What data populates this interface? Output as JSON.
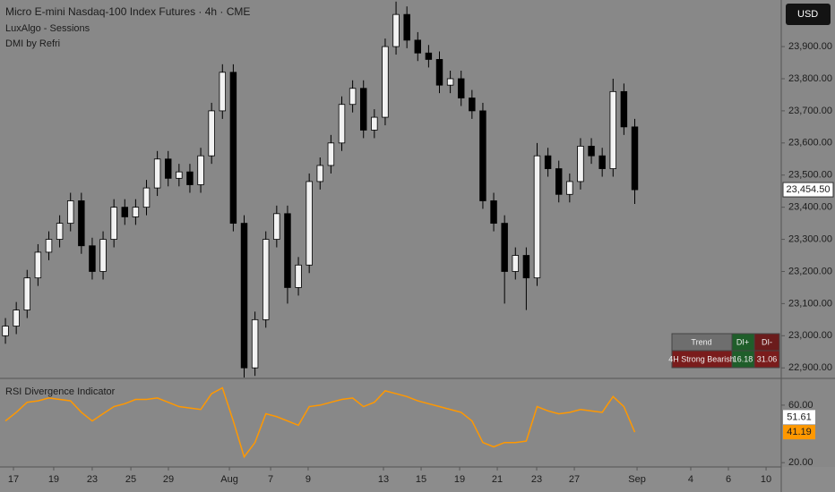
{
  "header": {
    "title": "Micro E-mini Nasdaq-100 Index Futures · 4h · CME",
    "indicators": [
      "LuxAlgo - Sessions",
      "DMI by Refri"
    ],
    "currency": "USD"
  },
  "dmi_table": {
    "header": [
      "Trend",
      "DI+",
      "DI-"
    ],
    "row": [
      "4H Strong Bearish",
      16.18,
      31.06
    ]
  },
  "chart_data": [
    {
      "type": "candlestick",
      "open": [
        23000,
        23030,
        23080,
        23180,
        23260,
        23300,
        23350,
        23420,
        23280,
        23200,
        23300,
        23400,
        23370,
        23400,
        23460,
        23550,
        23490,
        23510,
        23470,
        23560,
        23700,
        23820,
        23350,
        22900,
        23050,
        23300,
        23380,
        23150,
        23220,
        23480,
        23530,
        23600,
        23720,
        23770,
        23640,
        23680,
        23900,
        24000,
        23920,
        23880,
        23860,
        23780,
        23800,
        23740,
        23700,
        23420,
        23350,
        23200,
        23250,
        23180,
        23560,
        23520,
        23440,
        23480,
        23590,
        23560,
        23520,
        23760,
        23650
      ],
      "high": [
        23055,
        23105,
        23205,
        23285,
        23325,
        23375,
        23445,
        23445,
        23305,
        23325,
        23425,
        23425,
        23425,
        23485,
        23575,
        23575,
        23535,
        23535,
        23585,
        23725,
        23845,
        23845,
        23375,
        23075,
        23325,
        23405,
        23405,
        23245,
        23505,
        23555,
        23625,
        23745,
        23795,
        23795,
        23705,
        23925,
        24040,
        24025,
        23945,
        23905,
        23885,
        23825,
        23825,
        23765,
        23725,
        23445,
        23375,
        23275,
        23275,
        23600,
        23585,
        23545,
        23505,
        23615,
        23615,
        23585,
        23800,
        23785,
        23675
      ],
      "low": [
        22975,
        23005,
        23055,
        23155,
        23235,
        23275,
        23325,
        23255,
        23175,
        23175,
        23275,
        23345,
        23345,
        23375,
        23435,
        23465,
        23465,
        23445,
        23445,
        23535,
        23675,
        23325,
        22870,
        22875,
        23025,
        23275,
        23100,
        23125,
        23195,
        23455,
        23505,
        23575,
        23695,
        23615,
        23615,
        23655,
        23875,
        23895,
        23855,
        23835,
        23755,
        23755,
        23715,
        23675,
        23395,
        23325,
        23100,
        23175,
        23080,
        23155,
        23495,
        23415,
        23415,
        23455,
        23535,
        23495,
        23495,
        23625,
        23410
      ],
      "close": [
        23030,
        23080,
        23180,
        23260,
        23300,
        23350,
        23420,
        23280,
        23200,
        23300,
        23400,
        23370,
        23400,
        23460,
        23550,
        23490,
        23510,
        23470,
        23560,
        23700,
        23820,
        23350,
        22900,
        23050,
        23300,
        23380,
        23150,
        23220,
        23480,
        23530,
        23600,
        23720,
        23770,
        23640,
        23680,
        23900,
        24000,
        23920,
        23880,
        23860,
        23780,
        23800,
        23740,
        23700,
        23420,
        23350,
        23200,
        23250,
        23180,
        23560,
        23520,
        23440,
        23480,
        23590,
        23560,
        23520,
        23760,
        23650,
        23454.5
      ],
      "up_color": "#f2f2f2",
      "down_color": "#000000",
      "current_price": {
        "value": 23454.5,
        "label": "23,454.50"
      },
      "ylim": [
        22870,
        24045
      ],
      "yticks": [
        {
          "value": 22900,
          "label": "22,900.00"
        },
        {
          "value": 23000,
          "label": "23,000.00"
        },
        {
          "value": 23100,
          "label": "23,100.00"
        },
        {
          "value": 23200,
          "label": "23,200.00"
        },
        {
          "value": 23300,
          "label": "23,300.00"
        },
        {
          "value": 23400,
          "label": "23,400.00"
        },
        {
          "value": 23500,
          "label": "23,500.00"
        },
        {
          "value": 23600,
          "label": "23,600.00"
        },
        {
          "value": 23700,
          "label": "23,700.00"
        },
        {
          "value": 23800,
          "label": "23,800.00"
        },
        {
          "value": 23900,
          "label": "23,900.00"
        }
      ],
      "xlim": [
        0,
        72
      ],
      "xticks": [
        {
          "value": 1.24,
          "label": "17"
        },
        {
          "value": 4.95,
          "label": "19"
        },
        {
          "value": 8.5,
          "label": "23"
        },
        {
          "value": 12.06,
          "label": "25"
        },
        {
          "value": 15.52,
          "label": "29"
        },
        {
          "value": 21.14,
          "label": "Aug"
        },
        {
          "value": 24.94,
          "label": "7"
        },
        {
          "value": 28.4,
          "label": "9"
        },
        {
          "value": 35.34,
          "label": "13"
        },
        {
          "value": 38.81,
          "label": "15"
        },
        {
          "value": 42.36,
          "label": "19"
        },
        {
          "value": 45.83,
          "label": "21"
        },
        {
          "value": 49.46,
          "label": "23"
        },
        {
          "value": 52.93,
          "label": "27"
        },
        {
          "value": 58.71,
          "label": "Sep"
        },
        {
          "value": 63.66,
          "label": "4"
        },
        {
          "value": 67.13,
          "label": "6"
        },
        {
          "value": 70.6,
          "label": "10"
        }
      ]
    },
    {
      "type": "line",
      "title": "RSI Divergence Indicator",
      "series": [
        {
          "name": "RSI",
          "color": "#ff9800",
          "values": [
            49,
            55,
            62,
            63,
            65,
            64,
            63,
            55,
            49,
            54,
            59,
            61,
            64,
            64,
            65,
            62,
            59,
            58,
            57,
            68,
            72,
            49,
            24,
            34,
            54,
            52,
            49,
            46,
            59,
            60,
            62,
            64,
            65,
            59,
            62,
            70,
            68,
            66,
            63,
            61,
            59,
            57,
            55,
            49,
            34,
            31,
            34,
            34,
            35,
            59,
            56,
            54,
            55,
            57,
            56,
            55,
            66,
            59,
            41.19
          ]
        }
      ],
      "price_labels": [
        51.61,
        41.19
      ],
      "price_label_colors": [
        "#ffffff",
        "#ff9800"
      ],
      "ylim": [
        17,
        78
      ],
      "yticks": [
        {
          "value": 60,
          "label": "60.00"
        },
        {
          "value": 20,
          "label": "20.00"
        }
      ]
    }
  ]
}
